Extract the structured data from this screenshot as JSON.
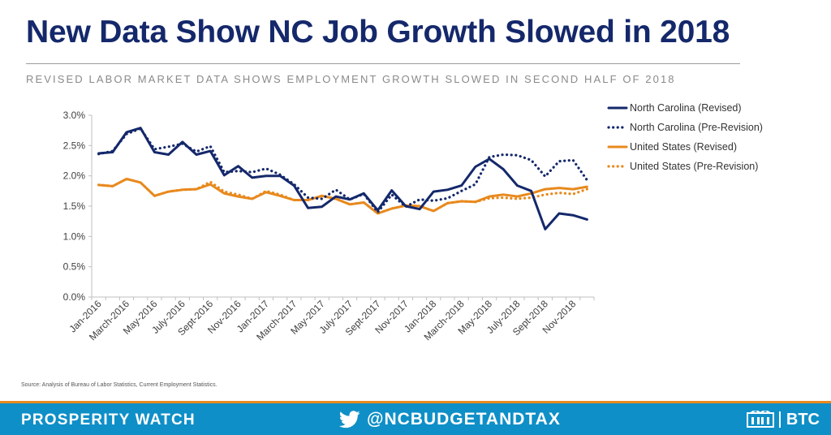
{
  "title": "New Data Show NC Job Growth Slowed in 2018",
  "subtitle": "REVISED LABOR MARKET DATA SHOWS EMPLOYMENT GROWTH SLOWED IN SECOND HALF OF 2018",
  "source": "Source: Analysis of Bureau of Labor Statistics, Current Employment Statistics.",
  "footer": {
    "left": "PROSPERITY WATCH",
    "handle": "@NCBUDGETANDTAX",
    "brand": "BTC",
    "icons": [
      "twitter-icon",
      "btc-logo-icon"
    ]
  },
  "colors": {
    "navy": "#14286b",
    "orange": "#e8891d",
    "footer_blue": "#0f8fc7"
  },
  "chart_data": {
    "type": "line",
    "x": [
      "Jan-2016",
      "Feb-2016",
      "March-2016",
      "April-2016",
      "May-2016",
      "June-2016",
      "July-2016",
      "Aug-2016",
      "Sept-2016",
      "Oct-2016",
      "Nov-2016",
      "Dec-2016",
      "Jan-2017",
      "Feb-2017",
      "March-2017",
      "April-2017",
      "May-2017",
      "June-2017",
      "July-2017",
      "Aug-2017",
      "Sept-2017",
      "Oct-2017",
      "Nov-2017",
      "Dec-2017",
      "Jan-2018",
      "Feb-2018",
      "March-2018",
      "April-2018",
      "May-2018",
      "June-2018",
      "July-2018",
      "Aug-2018",
      "Sept-2018",
      "Oct-2018",
      "Nov-2018",
      "Dec-2018"
    ],
    "x_tick_labels": [
      "Jan-2016",
      "March-2016",
      "May-2016",
      "July-2016",
      "Sept-2016",
      "Nov-2016",
      "Jan-2017",
      "March-2017",
      "May-2017",
      "July-2017",
      "Sept-2017",
      "Nov-2017",
      "Jan-2018",
      "March-2018",
      "May-2018",
      "July-2018",
      "Sept-2018",
      "Nov-2018"
    ],
    "y_tick_labels": [
      "0.0%",
      "0.5%",
      "1.0%",
      "1.5%",
      "2.0%",
      "2.5%",
      "3.0%"
    ],
    "ylim": [
      0,
      3.0
    ],
    "y_unit": "%",
    "grid": false,
    "legend_position": "right",
    "series": [
      {
        "name": "North Carolina (Revised)",
        "color": "#14286b",
        "style": "solid",
        "values": [
          2.37,
          2.39,
          2.72,
          2.79,
          2.39,
          2.35,
          2.56,
          2.35,
          2.41,
          2.01,
          2.16,
          1.97,
          2.0,
          2.0,
          1.84,
          1.47,
          1.49,
          1.66,
          1.61,
          1.71,
          1.43,
          1.76,
          1.5,
          1.45,
          1.74,
          1.77,
          1.84,
          2.15,
          2.28,
          2.11,
          1.84,
          1.75,
          1.12,
          1.38,
          1.35,
          1.28
        ]
      },
      {
        "name": "North Carolina (Pre-Revision)",
        "color": "#14286b",
        "style": "dotted",
        "values": [
          2.36,
          2.41,
          2.69,
          2.78,
          2.44,
          2.48,
          2.53,
          2.4,
          2.49,
          2.06,
          2.08,
          2.06,
          2.12,
          2.02,
          1.86,
          1.64,
          1.62,
          1.77,
          1.61,
          1.7,
          1.4,
          1.69,
          1.49,
          1.61,
          1.59,
          1.63,
          1.75,
          1.86,
          2.31,
          2.35,
          2.34,
          2.26,
          1.99,
          2.24,
          2.26,
          1.93
        ]
      },
      {
        "name": "United States (Revised)",
        "color": "#e8891d",
        "style": "solid",
        "values": [
          1.85,
          1.83,
          1.95,
          1.89,
          1.67,
          1.74,
          1.77,
          1.78,
          1.86,
          1.71,
          1.66,
          1.62,
          1.73,
          1.67,
          1.6,
          1.6,
          1.67,
          1.62,
          1.53,
          1.56,
          1.38,
          1.46,
          1.51,
          1.5,
          1.42,
          1.55,
          1.58,
          1.57,
          1.66,
          1.69,
          1.66,
          1.71,
          1.78,
          1.8,
          1.78,
          1.82
        ]
      },
      {
        "name": "United States (Pre-Revision)",
        "color": "#e8891d",
        "style": "dotted",
        "values": [
          1.85,
          1.83,
          1.95,
          1.89,
          1.67,
          1.74,
          1.77,
          1.78,
          1.9,
          1.74,
          1.69,
          1.62,
          1.75,
          1.69,
          1.6,
          1.6,
          1.67,
          1.62,
          1.53,
          1.56,
          1.38,
          1.46,
          1.51,
          1.5,
          1.42,
          1.55,
          1.58,
          1.57,
          1.63,
          1.64,
          1.62,
          1.64,
          1.69,
          1.72,
          1.7,
          1.78
        ]
      }
    ]
  }
}
